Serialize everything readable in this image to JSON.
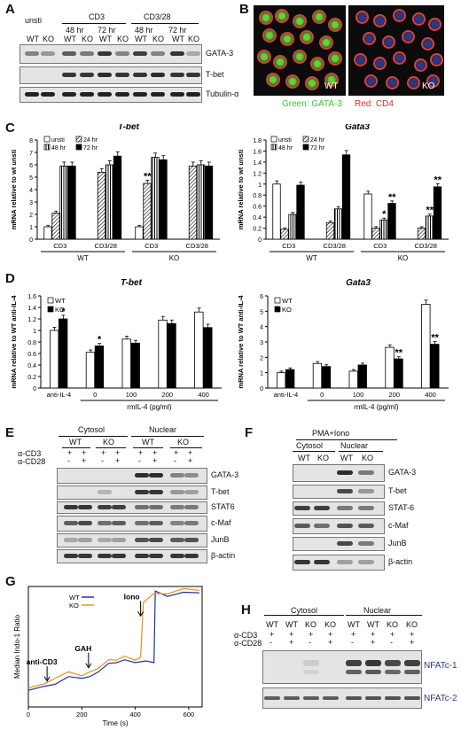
{
  "panels": {
    "A": {
      "label": "A",
      "groups": [
        "unsti",
        "CD3",
        "CD3/28"
      ],
      "timepoints": [
        "48 hr",
        "72 hr",
        "48 hr",
        "72 hr"
      ],
      "lanes": [
        "WT",
        "KO",
        "WT",
        "KO",
        "WT",
        "KO",
        "WT",
        "KO",
        "WT",
        "KO"
      ],
      "bands": [
        "GATA-3",
        "T-bet",
        "Tubulin-α"
      ]
    },
    "B": {
      "label": "B",
      "wt_label": "WT",
      "ko_label": "KO",
      "caption_green": "Green: GATA-3",
      "caption_red": "Red: CD4",
      "green_color": "#33cc33",
      "red_color": "#e03030"
    },
    "C": {
      "label": "C"
    },
    "D": {
      "label": "D"
    },
    "E": {
      "label": "E",
      "fractions": [
        "Cytosol",
        "Nuclear"
      ],
      "genotypes": [
        "WT",
        "KO",
        "WT",
        "KO"
      ],
      "row_cd3_label": "α-CD3",
      "row_cd28_label": "α-CD28",
      "row_cd3": [
        "+",
        "+",
        "+",
        "+",
        "+",
        "+",
        "+",
        "+"
      ],
      "row_cd28": [
        "-",
        "+",
        "-",
        "+",
        "-",
        "+",
        "-",
        "+"
      ],
      "bands": [
        "GATA-3",
        "T-bet",
        "STAT6",
        "c-Maf",
        "JunB",
        "β-actin"
      ]
    },
    "F": {
      "label": "F",
      "treatment": "PMA+Iono",
      "fractions": [
        "Cytosol",
        "Nuclear"
      ],
      "lanes": [
        "WT",
        "KO",
        "WT",
        "KO"
      ],
      "bands": [
        "GATA-3",
        "T-bet",
        "STAT-6",
        "c-Maf",
        "JunB",
        "β-actin"
      ]
    },
    "G": {
      "label": "G"
    },
    "H": {
      "label": "H",
      "fractions": [
        "Cytosol",
        "Nuclear"
      ],
      "lanes": [
        "WT",
        "WT",
        "KO",
        "KO",
        "WT",
        "WT",
        "KO",
        "KO"
      ],
      "row_cd3_label": "α-CD3",
      "row_cd28_label": "α-CD28",
      "row_cd3": [
        "+",
        "+",
        "+",
        "+",
        "+",
        "+",
        "+",
        "+"
      ],
      "row_cd28": [
        "-",
        "+",
        "-",
        "+",
        "-",
        "+",
        "-",
        "+"
      ],
      "bands": [
        "NFATc-1",
        "NFATc-2"
      ],
      "band_label_color": "#2b3a8c"
    }
  },
  "chart_data": [
    {
      "id": "C-left",
      "type": "bar",
      "title": "T-bet",
      "ylabel": "mRNA relative to wt unsti",
      "ylim": [
        0,
        8
      ],
      "yticks": [
        0,
        1,
        2,
        3,
        4,
        5,
        6,
        7,
        8
      ],
      "categories": [
        "CD3",
        "CD3/28",
        "CD3",
        "CD3/28"
      ],
      "groups": [
        "WT",
        "KO"
      ],
      "legend": [
        "unsti",
        "24 hr",
        "48 hr",
        "72 hr"
      ],
      "series": [
        {
          "name": "unsti",
          "values": [
            1.0,
            null,
            1.0,
            null
          ]
        },
        {
          "name": "24 hr",
          "values": [
            2.1,
            5.4,
            4.5,
            5.9
          ]
        },
        {
          "name": "48 hr",
          "values": [
            5.9,
            6.0,
            6.6,
            6.0
          ]
        },
        {
          "name": "72 hr",
          "values": [
            5.9,
            6.7,
            6.4,
            5.9
          ]
        }
      ],
      "annotations": [
        {
          "category": 2,
          "series": "24 hr",
          "text": "**"
        }
      ]
    },
    {
      "id": "C-right",
      "type": "bar",
      "title": "Gata3",
      "ylabel": "mRNA relative to wt unsti",
      "ylim": [
        0,
        1.8
      ],
      "yticks": [
        0,
        0.2,
        0.4,
        0.6,
        0.8,
        1,
        1.2,
        1.4,
        1.6,
        1.8
      ],
      "categories": [
        "CD3",
        "CD3/28",
        "CD3",
        "CD3/28"
      ],
      "groups": [
        "WT",
        "KO"
      ],
      "legend": [
        "unsti",
        "24 hr",
        "48 hr",
        "72 hr"
      ],
      "series": [
        {
          "name": "unsti",
          "values": [
            1.0,
            null,
            0.82,
            null
          ]
        },
        {
          "name": "24 hr",
          "values": [
            0.18,
            0.3,
            0.2,
            0.2
          ]
        },
        {
          "name": "48 hr",
          "values": [
            0.45,
            0.55,
            0.35,
            0.42
          ]
        },
        {
          "name": "72 hr",
          "values": [
            0.98,
            1.53,
            0.65,
            0.95
          ]
        }
      ],
      "annotations": [
        {
          "category": 2,
          "series": "48 hr",
          "text": "*"
        },
        {
          "category": 2,
          "series": "72 hr",
          "text": "**"
        },
        {
          "category": 3,
          "series": "48 hr",
          "text": "**"
        },
        {
          "category": 3,
          "series": "72 hr",
          "text": "**"
        }
      ]
    },
    {
      "id": "D-left",
      "type": "bar",
      "title": "T-bet",
      "ylabel": "mRNA relative to WT anti-IL-4",
      "xlabel": "rmIL-4 (pg/ml)",
      "ylim": [
        0,
        1.6
      ],
      "yticks": [
        0,
        0.2,
        0.4,
        0.6,
        0.8,
        1,
        1.2,
        1.4,
        1.6
      ],
      "categories": [
        "anti-IL-4",
        "0",
        "100",
        "200",
        "400"
      ],
      "series": [
        {
          "name": "WT",
          "values": [
            1.0,
            0.62,
            0.85,
            1.18,
            1.32
          ]
        },
        {
          "name": "KO",
          "values": [
            1.2,
            0.73,
            0.78,
            1.12,
            1.05
          ]
        }
      ],
      "annotations": [
        {
          "category": 0,
          "series": "KO",
          "text": "*"
        },
        {
          "category": 1,
          "series": "KO",
          "text": "*"
        }
      ]
    },
    {
      "id": "D-right",
      "type": "bar",
      "title": "Gata3",
      "ylabel": "mRNA relative to WT anti-IL-4",
      "xlabel": "rmIL-4 (pg/ml)",
      "ylim": [
        0,
        6
      ],
      "yticks": [
        0,
        1,
        2,
        3,
        4,
        5,
        6
      ],
      "categories": [
        "anti-IL-4",
        "0",
        "100",
        "200",
        "400"
      ],
      "series": [
        {
          "name": "WT",
          "values": [
            1.0,
            1.6,
            1.1,
            2.65,
            5.45
          ]
        },
        {
          "name": "KO",
          "values": [
            1.2,
            1.4,
            1.5,
            1.9,
            2.85
          ]
        }
      ],
      "annotations": [
        {
          "category": 3,
          "series": "KO",
          "text": "**"
        },
        {
          "category": 4,
          "series": "KO",
          "text": "**"
        }
      ]
    },
    {
      "id": "G",
      "type": "line",
      "ylabel": "Median Indo-1 Ratio",
      "xlabel": "Time (s)",
      "xlim": [
        0,
        650
      ],
      "xticks": [
        0,
        200,
        400,
        600
      ],
      "legend": [
        "WT",
        "KO"
      ],
      "series": [
        {
          "name": "WT",
          "color": "#2233aa",
          "x": [
            0,
            60,
            100,
            150,
            200,
            230,
            260,
            300,
            330,
            360,
            400,
            440,
            470,
            475,
            520,
            580,
            640
          ],
          "y": [
            0.15,
            0.16,
            0.2,
            0.24,
            0.25,
            0.24,
            0.3,
            0.35,
            0.38,
            0.38,
            0.38,
            0.37,
            0.38,
            0.95,
            0.93,
            0.94,
            0.96
          ]
        },
        {
          "name": "KO",
          "color": "#e8901a",
          "x": [
            0,
            60,
            100,
            150,
            200,
            230,
            260,
            300,
            330,
            360,
            400,
            420,
            430,
            470,
            520,
            580,
            640
          ],
          "y": [
            0.17,
            0.18,
            0.25,
            0.28,
            0.27,
            0.28,
            0.33,
            0.38,
            0.4,
            0.41,
            0.4,
            0.4,
            0.88,
            0.93,
            0.95,
            0.97,
            0.98
          ]
        }
      ],
      "annotations": [
        {
          "x": 70,
          "text": "anti-CD3"
        },
        {
          "x": 225,
          "text": "GAH"
        },
        {
          "x": 420,
          "text": "Iono"
        }
      ]
    }
  ]
}
